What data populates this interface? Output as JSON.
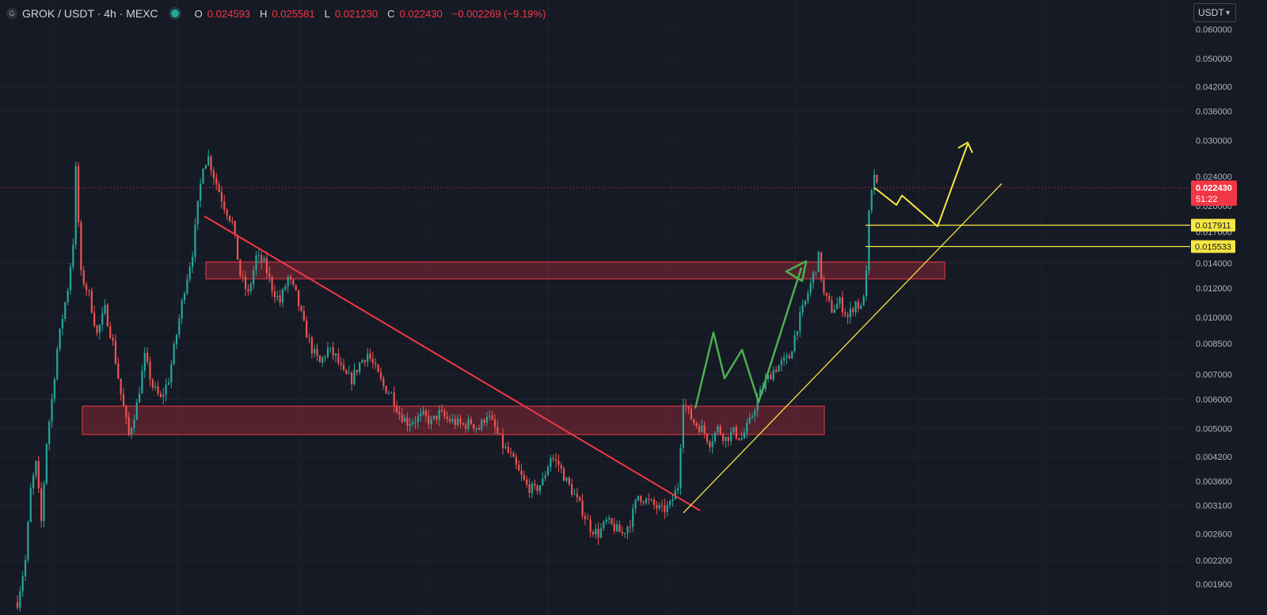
{
  "header": {
    "symbol_badge": "G",
    "title": "GROK / USDT · 4h · MEXC",
    "ohlc": [
      {
        "key": "O",
        "value": "0.024593"
      },
      {
        "key": "H",
        "value": "0.025581"
      },
      {
        "key": "L",
        "value": "0.021230"
      },
      {
        "key": "C",
        "value": "0.022430"
      },
      {
        "key": "",
        "value": "−0.002269 (−9.19%)"
      }
    ],
    "currency": "USDT"
  },
  "colors": {
    "background": "#161a25",
    "up": "#26a69a",
    "down": "#ef5350",
    "zone_fill": "rgba(242,54,69,0.28)",
    "zone_border": "#f23645",
    "downtrend": "#f23645",
    "uptrend": "#f5e642",
    "green_path": "#4caf50",
    "yellow_path": "#f5e642"
  },
  "chart_data": {
    "type": "candlestick",
    "y_scale": "log",
    "y_ticks": [
      "0.001900",
      "0.002200",
      "0.002600",
      "0.003100",
      "0.003600",
      "0.004200",
      "0.005000",
      "0.006000",
      "0.007000",
      "0.008500",
      "0.010000",
      "0.012000",
      "0.014000",
      "0.017000",
      "0.020000",
      "0.024000",
      "0.030000",
      "0.036000",
      "0.042000",
      "0.050000",
      "0.060000"
    ],
    "price_path": [
      [
        0,
        0.0017
      ],
      [
        3,
        0.0022
      ],
      [
        5,
        0.0034
      ],
      [
        7,
        0.004
      ],
      [
        9,
        0.0028
      ],
      [
        11,
        0.0046
      ],
      [
        13,
        0.006
      ],
      [
        15,
        0.0082
      ],
      [
        17,
        0.01
      ],
      [
        19,
        0.012
      ],
      [
        21,
        0.016
      ],
      [
        22,
        0.025
      ],
      [
        24,
        0.013
      ],
      [
        27,
        0.0115
      ],
      [
        30,
        0.009
      ],
      [
        33,
        0.0105
      ],
      [
        36,
        0.0085
      ],
      [
        39,
        0.0062
      ],
      [
        42,
        0.0048
      ],
      [
        45,
        0.0058
      ],
      [
        48,
        0.0078
      ],
      [
        51,
        0.0065
      ],
      [
        54,
        0.006
      ],
      [
        57,
        0.0068
      ],
      [
        60,
        0.009
      ],
      [
        63,
        0.012
      ],
      [
        66,
        0.015
      ],
      [
        68,
        0.02
      ],
      [
        70,
        0.026
      ],
      [
        72,
        0.027
      ],
      [
        75,
        0.023
      ],
      [
        78,
        0.02
      ],
      [
        81,
        0.018
      ],
      [
        84,
        0.013
      ],
      [
        87,
        0.0115
      ],
      [
        90,
        0.0145
      ],
      [
        93,
        0.014
      ],
      [
        96,
        0.012
      ],
      [
        99,
        0.011
      ],
      [
        102,
        0.0128
      ],
      [
        105,
        0.0115
      ],
      [
        108,
        0.0095
      ],
      [
        111,
        0.0082
      ],
      [
        114,
        0.0075
      ],
      [
        117,
        0.0082
      ],
      [
        120,
        0.0078
      ],
      [
        123,
        0.007
      ],
      [
        126,
        0.0068
      ],
      [
        129,
        0.0075
      ],
      [
        132,
        0.008
      ],
      [
        135,
        0.0072
      ],
      [
        138,
        0.0065
      ],
      [
        141,
        0.0062
      ],
      [
        144,
        0.0055
      ],
      [
        147,
        0.0052
      ],
      [
        150,
        0.0053
      ],
      [
        153,
        0.0054
      ],
      [
        156,
        0.0052
      ],
      [
        159,
        0.0055
      ],
      [
        162,
        0.0053
      ],
      [
        165,
        0.0052
      ],
      [
        168,
        0.0051
      ],
      [
        171,
        0.0052
      ],
      [
        174,
        0.005
      ],
      [
        177,
        0.0055
      ],
      [
        180,
        0.005
      ],
      [
        183,
        0.0045
      ],
      [
        186,
        0.0042
      ],
      [
        189,
        0.0038
      ],
      [
        192,
        0.0035
      ],
      [
        195,
        0.0034
      ],
      [
        198,
        0.0036
      ],
      [
        201,
        0.0042
      ],
      [
        204,
        0.004
      ],
      [
        207,
        0.0036
      ],
      [
        210,
        0.0033
      ],
      [
        213,
        0.003
      ],
      [
        216,
        0.0027
      ],
      [
        219,
        0.0026
      ],
      [
        222,
        0.0028
      ],
      [
        225,
        0.0027
      ],
      [
        228,
        0.0026
      ],
      [
        231,
        0.0028
      ],
      [
        234,
        0.0033
      ],
      [
        237,
        0.0032
      ],
      [
        240,
        0.0031
      ],
      [
        243,
        0.003
      ],
      [
        246,
        0.0031
      ],
      [
        249,
        0.0035
      ],
      [
        251,
        0.006
      ],
      [
        253,
        0.0055
      ],
      [
        255,
        0.0052
      ],
      [
        258,
        0.005
      ],
      [
        261,
        0.0046
      ],
      [
        264,
        0.005
      ],
      [
        267,
        0.0047
      ],
      [
        270,
        0.0049
      ],
      [
        273,
        0.0047
      ],
      [
        276,
        0.0052
      ],
      [
        279,
        0.006
      ],
      [
        282,
        0.0067
      ],
      [
        285,
        0.0072
      ],
      [
        288,
        0.0075
      ],
      [
        291,
        0.0078
      ],
      [
        294,
        0.0095
      ],
      [
        297,
        0.011
      ],
      [
        300,
        0.013
      ],
      [
        302,
        0.0145
      ],
      [
        304,
        0.0115
      ],
      [
        307,
        0.0105
      ],
      [
        310,
        0.011
      ],
      [
        313,
        0.01
      ],
      [
        316,
        0.011
      ],
      [
        318,
        0.0105
      ],
      [
        320,
        0.013
      ],
      [
        321,
        0.019
      ],
      [
        322,
        0.0215
      ],
      [
        323,
        0.0245
      ],
      [
        324,
        0.0224
      ]
    ],
    "current_price": "0.022430",
    "countdown": "51:22",
    "price_labels": [
      "0.017911",
      "0.015533"
    ],
    "zones": [
      {
        "name": "resistance-zone",
        "top": 0.0141,
        "bottom": 0.0127
      },
      {
        "name": "support-zone",
        "top": 0.00575,
        "bottom": 0.00482
      }
    ]
  }
}
